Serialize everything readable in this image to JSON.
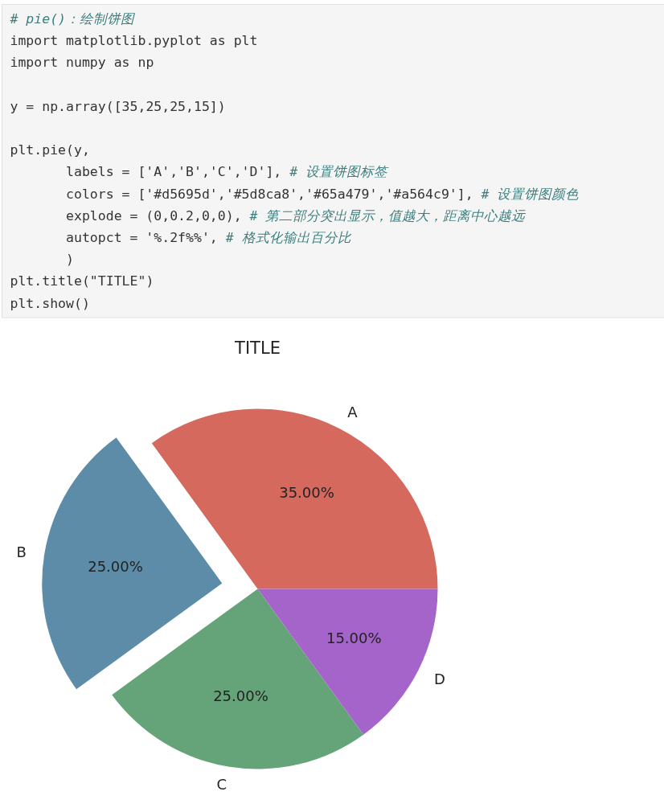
{
  "chart_data": {
    "type": "pie",
    "title": "TITLE",
    "categories": [
      "A",
      "B",
      "C",
      "D"
    ],
    "values": [
      35,
      25,
      25,
      15
    ],
    "colors": [
      "#d5695d",
      "#5d8ca8",
      "#65a479",
      "#a564c9"
    ],
    "value_labels": [
      "35.00%",
      "25.00%",
      "25.00%",
      "15.00%"
    ],
    "annotations": [
      "# pie()：绘制饼图\nimport matplotlib.pyplot as plt\nimport numpy as np\n\ny = np.array([35,25,25,15])\n\nplt.pie(y,\n       labels = ['A','B','C','D'], # 设置饼图标签\n       colors = ['#d5695d','#5d8ca8','#65a479','#a564c9'], # 设置饼图颜色\n       explode = (0,0.2,0,0), # 第二部分突出显示，值越大，距离中心越远\n       autopct = '%.2f%%', # 格式化输出百分比\n       )\nplt.title(\"TITLE\")\nplt.show()"
    ]
  }
}
